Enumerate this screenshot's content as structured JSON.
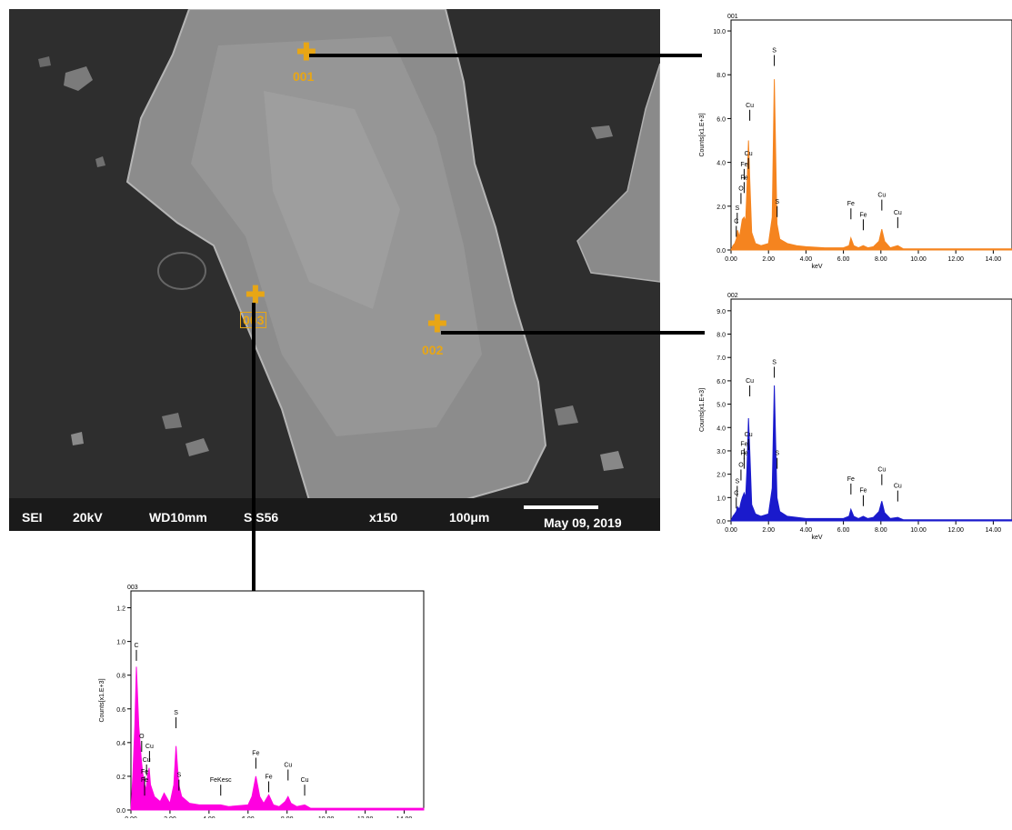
{
  "sem": {
    "footer": {
      "mode": "SEI",
      "voltage": "20kV",
      "wd": "WD10mm",
      "spot": "S S56",
      "magnification": "x150",
      "scale": "100μm",
      "date": "May 09, 2019"
    },
    "markers": [
      {
        "label": "001"
      },
      {
        "label": "002"
      },
      {
        "label": "003"
      }
    ],
    "marker_color": "#e8a615"
  },
  "chart_data": [
    {
      "type": "area",
      "title": "001",
      "xlabel": "keV",
      "ylabel": "Counts[x1.E+3]",
      "color": "#f5841f",
      "xlim": [
        0,
        15
      ],
      "ylim": [
        0,
        10.5
      ],
      "xticks": [
        "0.00",
        "2.00",
        "4.00",
        "6.00",
        "8.00",
        "10.00",
        "12.00",
        "14.00"
      ],
      "yticks": [
        "0.0",
        "2.0",
        "4.0",
        "6.0",
        "8.0",
        "10.0"
      ],
      "series": [
        {
          "x": [
            0.0,
            0.1,
            0.2,
            0.28,
            0.35,
            0.45,
            0.53,
            0.6,
            0.7,
            0.78,
            0.85,
            0.93,
            1.0,
            1.1,
            1.3,
            1.6,
            2.0,
            2.2,
            2.31,
            2.45,
            2.6,
            3.0,
            3.5,
            4.0,
            5.0,
            6.0,
            6.3,
            6.4,
            6.55,
            6.8,
            7.06,
            7.3,
            7.6,
            7.9,
            8.05,
            8.2,
            8.5,
            8.9,
            9.2,
            9.6,
            10.0,
            11.0,
            12.0,
            13.0,
            14.0,
            15.0
          ],
          "y": [
            0.0,
            0.2,
            0.3,
            0.5,
            0.9,
            0.6,
            1.0,
            1.4,
            1.5,
            1.3,
            2.8,
            5.0,
            3.2,
            0.8,
            0.3,
            0.2,
            0.3,
            1.5,
            7.8,
            1.2,
            0.5,
            0.3,
            0.2,
            0.15,
            0.1,
            0.1,
            0.2,
            0.55,
            0.2,
            0.1,
            0.2,
            0.1,
            0.15,
            0.4,
            0.95,
            0.4,
            0.1,
            0.2,
            0.05,
            0.05,
            0.05,
            0.05,
            0.05,
            0.05,
            0.05,
            0.05
          ]
        }
      ],
      "annotations": [
        {
          "label": "C",
          "x": 0.28,
          "y": 1.1
        },
        {
          "label": "S",
          "x": 0.33,
          "y": 1.7
        },
        {
          "label": "O",
          "x": 0.53,
          "y": 2.6
        },
        {
          "label": "Fe",
          "x": 0.7,
          "y": 3.1
        },
        {
          "label": "Fe",
          "x": 0.7,
          "y": 3.7
        },
        {
          "label": "Cu",
          "x": 0.93,
          "y": 4.2
        },
        {
          "label": "Cu",
          "x": 1.0,
          "y": 6.4
        },
        {
          "label": "S",
          "x": 2.31,
          "y": 8.9
        },
        {
          "label": "S",
          "x": 2.46,
          "y": 2.0
        },
        {
          "label": "Fe",
          "x": 6.4,
          "y": 1.9
        },
        {
          "label": "Fe",
          "x": 7.06,
          "y": 1.4
        },
        {
          "label": "Cu",
          "x": 8.05,
          "y": 2.3
        },
        {
          "label": "Cu",
          "x": 8.9,
          "y": 1.5
        }
      ]
    },
    {
      "type": "area",
      "title": "002",
      "xlabel": "keV",
      "ylabel": "Counts[x1.E+3]",
      "color": "#1a1acc",
      "xlim": [
        0,
        15
      ],
      "ylim": [
        0,
        9.5
      ],
      "xticks": [
        "0.00",
        "2.00",
        "4.00",
        "6.00",
        "8.00",
        "10.00",
        "12.00",
        "14.00"
      ],
      "yticks": [
        "0.0",
        "1.0",
        "2.0",
        "3.0",
        "4.0",
        "5.0",
        "6.0",
        "7.0",
        "8.0",
        "9.0"
      ],
      "series": [
        {
          "x": [
            0.0,
            0.1,
            0.2,
            0.28,
            0.35,
            0.45,
            0.53,
            0.6,
            0.7,
            0.78,
            0.85,
            0.93,
            1.0,
            1.1,
            1.3,
            1.6,
            2.0,
            2.2,
            2.31,
            2.45,
            2.6,
            3.0,
            3.5,
            4.0,
            5.0,
            6.0,
            6.3,
            6.4,
            6.55,
            6.8,
            7.06,
            7.3,
            7.6,
            7.9,
            8.05,
            8.2,
            8.5,
            8.9,
            9.2,
            9.6,
            10.0,
            11.0,
            12.0,
            13.0,
            14.0,
            15.0
          ],
          "y": [
            0.0,
            0.2,
            0.3,
            0.4,
            0.6,
            0.5,
            0.8,
            1.0,
            1.2,
            1.0,
            2.2,
            4.4,
            3.0,
            0.7,
            0.3,
            0.2,
            0.3,
            1.4,
            5.8,
            1.0,
            0.4,
            0.2,
            0.15,
            0.1,
            0.1,
            0.1,
            0.2,
            0.5,
            0.2,
            0.1,
            0.2,
            0.1,
            0.15,
            0.4,
            0.85,
            0.35,
            0.1,
            0.15,
            0.05,
            0.05,
            0.05,
            0.05,
            0.05,
            0.05,
            0.05,
            0.05
          ]
        }
      ],
      "annotations": [
        {
          "label": "C",
          "x": 0.28,
          "y": 1.0
        },
        {
          "label": "S",
          "x": 0.33,
          "y": 1.5
        },
        {
          "label": "O",
          "x": 0.53,
          "y": 2.2
        },
        {
          "label": "Fe",
          "x": 0.7,
          "y": 2.7
        },
        {
          "label": "Fe",
          "x": 0.7,
          "y": 3.1
        },
        {
          "label": "Cu",
          "x": 0.93,
          "y": 3.5
        },
        {
          "label": "Cu",
          "x": 1.0,
          "y": 5.8
        },
        {
          "label": "S",
          "x": 2.31,
          "y": 6.6
        },
        {
          "label": "S",
          "x": 2.46,
          "y": 2.7
        },
        {
          "label": "Fe",
          "x": 6.4,
          "y": 1.6
        },
        {
          "label": "Fe",
          "x": 7.06,
          "y": 1.1
        },
        {
          "label": "Cu",
          "x": 8.05,
          "y": 2.0
        },
        {
          "label": "Cu",
          "x": 8.9,
          "y": 1.3
        }
      ]
    },
    {
      "type": "area",
      "title": "003",
      "xlabel": "keV",
      "ylabel": "Counts[x1.E+3]",
      "color": "#ff00e0",
      "xlim": [
        0,
        15
      ],
      "ylim": [
        0,
        1.3
      ],
      "xticks": [
        "0.00",
        "2.00",
        "4.00",
        "6.00",
        "8.00",
        "10.00",
        "12.00",
        "14.00"
      ],
      "yticks": [
        "0.0",
        "0.2",
        "0.4",
        "0.6",
        "0.8",
        "1.0",
        "1.2"
      ],
      "series": [
        {
          "x": [
            0.0,
            0.1,
            0.2,
            0.28,
            0.4,
            0.53,
            0.6,
            0.7,
            0.78,
            0.85,
            0.93,
            1.0,
            1.2,
            1.5,
            1.7,
            2.0,
            2.2,
            2.31,
            2.45,
            2.6,
            3.0,
            3.5,
            4.0,
            4.6,
            5.0,
            6.0,
            6.2,
            6.4,
            6.6,
            6.8,
            7.06,
            7.3,
            7.6,
            7.9,
            8.05,
            8.2,
            8.5,
            8.9,
            9.2,
            9.6,
            10.0,
            11.0,
            12.0,
            13.0,
            14.0,
            15.0
          ],
          "y": [
            0.0,
            0.2,
            0.5,
            0.85,
            0.5,
            0.3,
            0.22,
            0.15,
            0.12,
            0.2,
            0.25,
            0.15,
            0.08,
            0.05,
            0.1,
            0.04,
            0.15,
            0.38,
            0.15,
            0.08,
            0.04,
            0.03,
            0.03,
            0.03,
            0.02,
            0.03,
            0.08,
            0.2,
            0.08,
            0.04,
            0.09,
            0.03,
            0.02,
            0.05,
            0.08,
            0.04,
            0.02,
            0.03,
            0.01,
            0.01,
            0.01,
            0.01,
            0.01,
            0.01,
            0.01,
            0.01
          ]
        }
      ],
      "annotations": [
        {
          "label": "C",
          "x": 0.28,
          "y": 0.95
        },
        {
          "label": "O",
          "x": 0.55,
          "y": 0.41
        },
        {
          "label": "Cu",
          "x": 0.95,
          "y": 0.35
        },
        {
          "label": "Cu",
          "x": 0.8,
          "y": 0.27
        },
        {
          "label": "Fe",
          "x": 0.7,
          "y": 0.2
        },
        {
          "label": "Fe",
          "x": 0.7,
          "y": 0.15
        },
        {
          "label": "S",
          "x": 2.31,
          "y": 0.55
        },
        {
          "label": "S",
          "x": 2.46,
          "y": 0.18
        },
        {
          "label": "FeKesc",
          "x": 4.6,
          "y": 0.15
        },
        {
          "label": "Fe",
          "x": 6.4,
          "y": 0.31
        },
        {
          "label": "Fe",
          "x": 7.06,
          "y": 0.17
        },
        {
          "label": "Cu",
          "x": 8.05,
          "y": 0.24
        },
        {
          "label": "Cu",
          "x": 8.9,
          "y": 0.15
        }
      ]
    }
  ]
}
